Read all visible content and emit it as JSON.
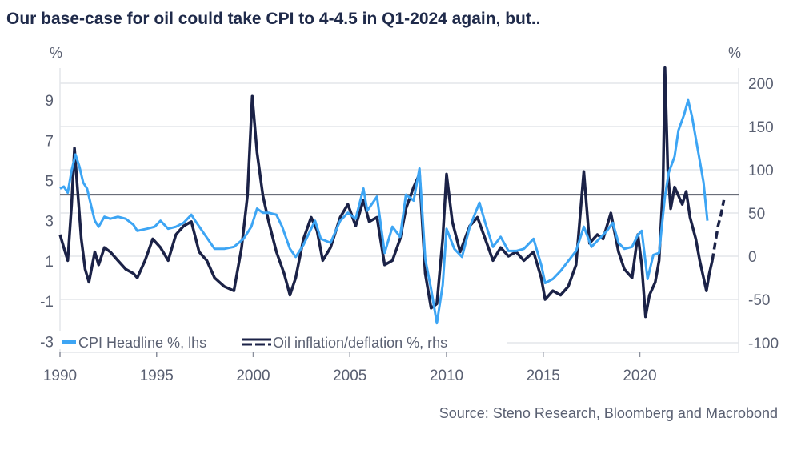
{
  "chart_data": {
    "type": "line",
    "title": "Our base-case for oil could take CPI to 4-4.5 in Q1-2024 again, but..",
    "source": "Source: Steno Research, Bloomberg and Macrobond",
    "left_axis": {
      "unit": "%",
      "ticks": [
        9,
        7,
        5,
        3,
        1,
        -1,
        -3
      ],
      "ylim": [
        -3.6,
        10.5
      ]
    },
    "right_axis": {
      "unit": "%",
      "ticks": [
        200,
        150,
        100,
        50,
        0,
        -50,
        -100
      ],
      "ylim": [
        -110,
        230
      ]
    },
    "x_axis": {
      "ticks": [
        1990,
        1995,
        2000,
        2005,
        2010,
        2015,
        2020
      ],
      "xlim": [
        1990,
        2025.5
      ]
    },
    "reference_line": {
      "axis": "left",
      "value": 4.3
    },
    "legend": {
      "placement": "bottom-left"
    },
    "grid": true,
    "colors": {
      "cpi": "#3da5f4",
      "oil": "#1b2247",
      "reference": "#555a66",
      "grid": "#e3e5ea",
      "text": "#5a6072",
      "title": "#1f2a4a"
    },
    "series": [
      {
        "name": "CPI Headline %, lhs",
        "axis": "left",
        "style": "solid",
        "points": [
          [
            1990,
            4.6
          ],
          [
            1990.2,
            4.7
          ],
          [
            1990.4,
            4.4
          ],
          [
            1990.6,
            5.5
          ],
          [
            1990.8,
            6.3
          ],
          [
            1991,
            5.7
          ],
          [
            1991.2,
            4.9
          ],
          [
            1991.4,
            4.6
          ],
          [
            1991.6,
            3.8
          ],
          [
            1991.8,
            3.0
          ],
          [
            1992,
            2.7
          ],
          [
            1992.3,
            3.2
          ],
          [
            1992.6,
            3.1
          ],
          [
            1993,
            3.2
          ],
          [
            1993.4,
            3.1
          ],
          [
            1993.8,
            2.8
          ],
          [
            1994,
            2.5
          ],
          [
            1994.5,
            2.6
          ],
          [
            1994.9,
            2.7
          ],
          [
            1995.2,
            3.0
          ],
          [
            1995.6,
            2.6
          ],
          [
            1996,
            2.7
          ],
          [
            1996.4,
            2.9
          ],
          [
            1996.8,
            3.3
          ],
          [
            1997,
            3.0
          ],
          [
            1997.5,
            2.3
          ],
          [
            1998,
            1.6
          ],
          [
            1998.5,
            1.6
          ],
          [
            1999,
            1.7
          ],
          [
            1999.5,
            2.1
          ],
          [
            1999.9,
            2.7
          ],
          [
            2000.2,
            3.6
          ],
          [
            2000.5,
            3.4
          ],
          [
            2000.8,
            3.4
          ],
          [
            2001.2,
            3.3
          ],
          [
            2001.5,
            2.7
          ],
          [
            2001.9,
            1.6
          ],
          [
            2002.2,
            1.2
          ],
          [
            2002.6,
            1.8
          ],
          [
            2003,
            2.6
          ],
          [
            2003.2,
            3.0
          ],
          [
            2003.5,
            2.1
          ],
          [
            2004,
            1.9
          ],
          [
            2004.5,
            3.0
          ],
          [
            2004.9,
            3.4
          ],
          [
            2005.3,
            3.1
          ],
          [
            2005.7,
            4.6
          ],
          [
            2005.9,
            3.5
          ],
          [
            2006.4,
            4.2
          ],
          [
            2006.8,
            1.4
          ],
          [
            2007.2,
            2.7
          ],
          [
            2007.6,
            2.2
          ],
          [
            2007.9,
            4.3
          ],
          [
            2008.3,
            4.0
          ],
          [
            2008.6,
            5.6
          ],
          [
            2008.9,
            1.1
          ],
          [
            2009.2,
            -0.4
          ],
          [
            2009.5,
            -2.1
          ],
          [
            2009.8,
            -0.2
          ],
          [
            2010,
            2.6
          ],
          [
            2010.4,
            1.6
          ],
          [
            2010.8,
            1.2
          ],
          [
            2011.2,
            2.7
          ],
          [
            2011.7,
            3.9
          ],
          [
            2012,
            2.9
          ],
          [
            2012.4,
            1.7
          ],
          [
            2012.8,
            2.2
          ],
          [
            2013.2,
            1.5
          ],
          [
            2013.6,
            1.5
          ],
          [
            2014,
            1.6
          ],
          [
            2014.5,
            2.1
          ],
          [
            2014.9,
            0.8
          ],
          [
            2015.1,
            -0.1
          ],
          [
            2015.5,
            0.1
          ],
          [
            2015.9,
            0.5
          ],
          [
            2016.3,
            1.0
          ],
          [
            2016.7,
            1.5
          ],
          [
            2017.1,
            2.7
          ],
          [
            2017.5,
            1.7
          ],
          [
            2017.9,
            2.1
          ],
          [
            2018.3,
            2.5
          ],
          [
            2018.6,
            2.9
          ],
          [
            2018.9,
            1.9
          ],
          [
            2019.2,
            1.6
          ],
          [
            2019.6,
            1.7
          ],
          [
            2019.9,
            2.3
          ],
          [
            2020.1,
            2.5
          ],
          [
            2020.4,
            0.1
          ],
          [
            2020.7,
            1.3
          ],
          [
            2021,
            1.4
          ],
          [
            2021.3,
            4.2
          ],
          [
            2021.5,
            5.4
          ],
          [
            2021.8,
            6.2
          ],
          [
            2022,
            7.5
          ],
          [
            2022.3,
            8.3
          ],
          [
            2022.5,
            9.0
          ],
          [
            2022.7,
            8.2
          ],
          [
            2022.9,
            7.1
          ],
          [
            2023.1,
            6.0
          ],
          [
            2023.3,
            4.9
          ],
          [
            2023.5,
            3.0
          ]
        ]
      },
      {
        "name": "Oil inflation/deflation %, rhs",
        "axis": "right",
        "style": "solid",
        "points": [
          [
            1990,
            25
          ],
          [
            1990.2,
            10
          ],
          [
            1990.4,
            -5
          ],
          [
            1990.6,
            60
          ],
          [
            1990.75,
            125
          ],
          [
            1990.9,
            80
          ],
          [
            1991.1,
            20
          ],
          [
            1991.3,
            -15
          ],
          [
            1991.5,
            -30
          ],
          [
            1991.8,
            5
          ],
          [
            1992,
            -10
          ],
          [
            1992.3,
            10
          ],
          [
            1992.6,
            5
          ],
          [
            1993,
            -5
          ],
          [
            1993.4,
            -15
          ],
          [
            1993.8,
            -20
          ],
          [
            1994,
            -25
          ],
          [
            1994.4,
            -5
          ],
          [
            1994.8,
            20
          ],
          [
            1995.2,
            10
          ],
          [
            1995.6,
            -5
          ],
          [
            1996,
            25
          ],
          [
            1996.4,
            35
          ],
          [
            1996.8,
            40
          ],
          [
            1997.2,
            5
          ],
          [
            1997.6,
            -5
          ],
          [
            1998,
            -25
          ],
          [
            1998.5,
            -35
          ],
          [
            1999,
            -40
          ],
          [
            1999.4,
            10
          ],
          [
            1999.7,
            70
          ],
          [
            1999.95,
            185
          ],
          [
            2000.2,
            120
          ],
          [
            2000.5,
            70
          ],
          [
            2000.8,
            40
          ],
          [
            2001.2,
            5
          ],
          [
            2001.6,
            -20
          ],
          [
            2001.9,
            -45
          ],
          [
            2002.2,
            -25
          ],
          [
            2002.6,
            20
          ],
          [
            2003,
            45
          ],
          [
            2003.3,
            30
          ],
          [
            2003.6,
            -5
          ],
          [
            2004,
            10
          ],
          [
            2004.5,
            45
          ],
          [
            2004.9,
            60
          ],
          [
            2005.3,
            35
          ],
          [
            2005.7,
            65
          ],
          [
            2006,
            40
          ],
          [
            2006.4,
            45
          ],
          [
            2006.8,
            -10
          ],
          [
            2007.2,
            -5
          ],
          [
            2007.6,
            20
          ],
          [
            2007.9,
            55
          ],
          [
            2008.3,
            80
          ],
          [
            2008.6,
            95
          ],
          [
            2008.9,
            -20
          ],
          [
            2009.2,
            -60
          ],
          [
            2009.5,
            -55
          ],
          [
            2009.8,
            20
          ],
          [
            2010,
            95
          ],
          [
            2010.3,
            40
          ],
          [
            2010.7,
            5
          ],
          [
            2011.2,
            35
          ],
          [
            2011.6,
            45
          ],
          [
            2012,
            20
          ],
          [
            2012.4,
            -5
          ],
          [
            2012.8,
            10
          ],
          [
            2013.2,
            0
          ],
          [
            2013.6,
            5
          ],
          [
            2014,
            -5
          ],
          [
            2014.5,
            5
          ],
          [
            2014.9,
            -25
          ],
          [
            2015.1,
            -50
          ],
          [
            2015.5,
            -40
          ],
          [
            2015.9,
            -45
          ],
          [
            2016.3,
            -35
          ],
          [
            2016.7,
            -10
          ],
          [
            2017.1,
            98
          ],
          [
            2017.4,
            15
          ],
          [
            2017.8,
            25
          ],
          [
            2018.1,
            20
          ],
          [
            2018.5,
            50
          ],
          [
            2018.9,
            5
          ],
          [
            2019.2,
            -15
          ],
          [
            2019.6,
            -25
          ],
          [
            2019.9,
            25
          ],
          [
            2020.1,
            -10
          ],
          [
            2020.3,
            -70
          ],
          [
            2020.5,
            -45
          ],
          [
            2020.8,
            -30
          ],
          [
            2021,
            -5
          ],
          [
            2021.2,
            80
          ],
          [
            2021.3,
            218
          ],
          [
            2021.45,
            100
          ],
          [
            2021.6,
            55
          ],
          [
            2021.8,
            80
          ],
          [
            2022,
            70
          ],
          [
            2022.2,
            60
          ],
          [
            2022.4,
            75
          ],
          [
            2022.6,
            45
          ],
          [
            2022.9,
            20
          ],
          [
            2023.1,
            -5
          ],
          [
            2023.3,
            -25
          ],
          [
            2023.45,
            -40
          ],
          [
            2023.6,
            -20
          ],
          [
            2023.75,
            -5
          ]
        ]
      },
      {
        "name": "Oil inflation/deflation % projection",
        "axis": "right",
        "style": "dashed",
        "points": [
          [
            2023.75,
            -5
          ],
          [
            2023.9,
            15
          ],
          [
            2024.05,
            35
          ],
          [
            2024.2,
            48
          ],
          [
            2024.35,
            65
          ]
        ]
      }
    ]
  }
}
